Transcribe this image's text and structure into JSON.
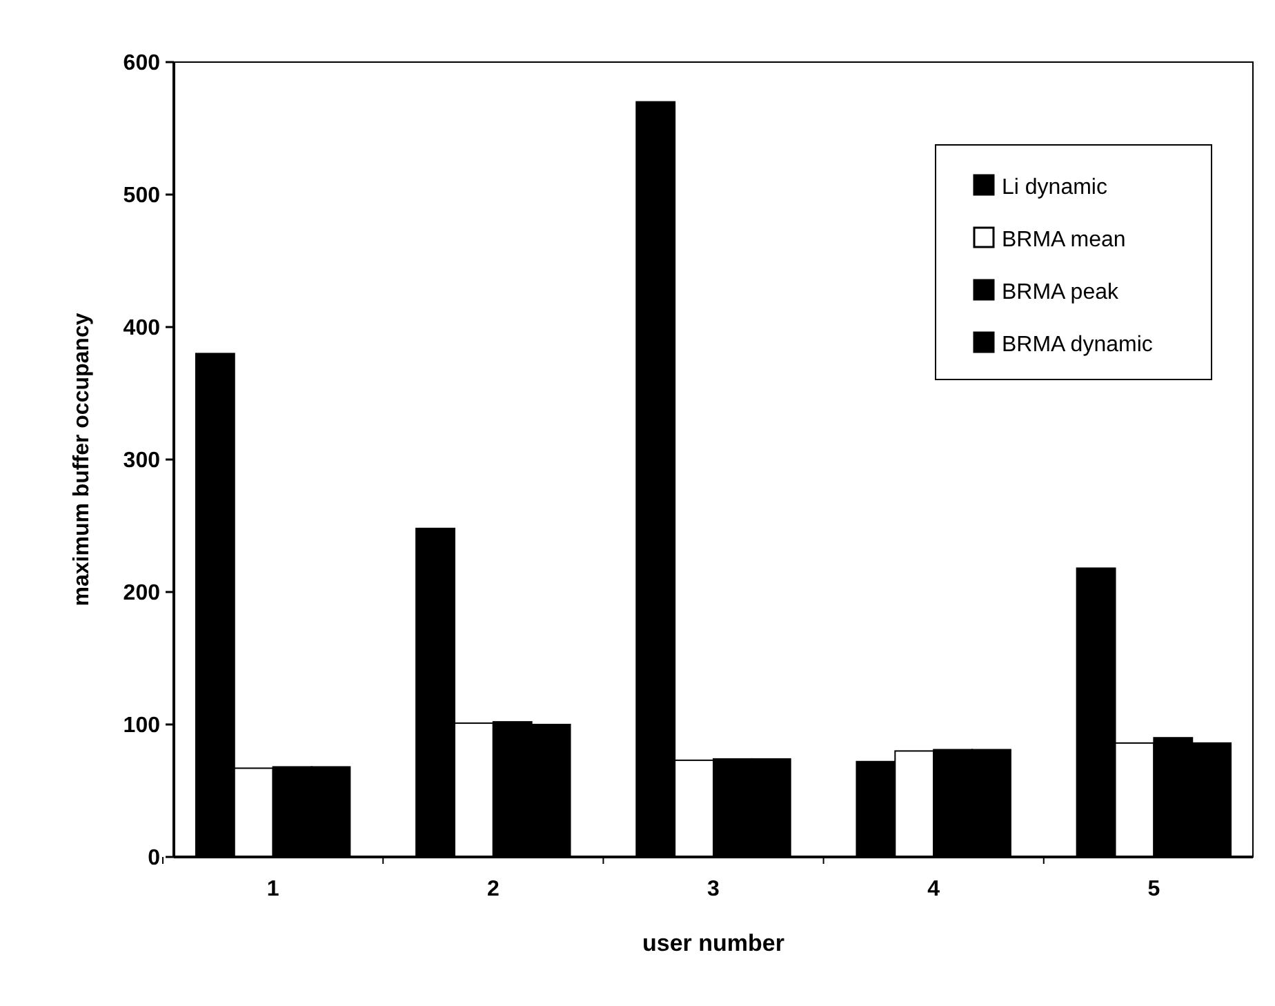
{
  "chart_data": {
    "type": "bar",
    "xlabel": "user number",
    "ylabel": "maximum buffer occupancy",
    "categories": [
      "1",
      "2",
      "3",
      "4",
      "5"
    ],
    "series": [
      {
        "name": "Li dynamic",
        "color": "#000000",
        "values": [
          380,
          248,
          570,
          72,
          218
        ]
      },
      {
        "name": "BRMA mean",
        "color": "#ffffff",
        "values": [
          67,
          101,
          73,
          80,
          86
        ]
      },
      {
        "name": "BRMA peak",
        "color": "#000000",
        "values": [
          68,
          102,
          74,
          81,
          90
        ]
      },
      {
        "name": "BRMA dynamic",
        "color": "#000000",
        "values": [
          68,
          100,
          74,
          81,
          86
        ]
      }
    ],
    "ylim": [
      0,
      600
    ],
    "yticks": [
      0,
      100,
      200,
      300,
      400,
      500,
      600
    ],
    "legend": "top right",
    "grid": false
  }
}
